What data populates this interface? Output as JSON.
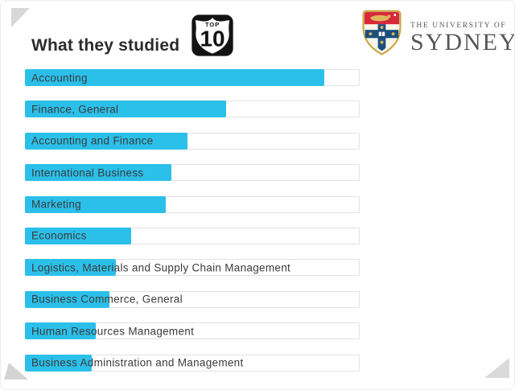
{
  "header": {
    "title": "What they studied",
    "badge": {
      "top_label": "TOP",
      "number": "10"
    },
    "logo": {
      "line1": "THE UNIVERSITY OF",
      "line2": "SYDNEY"
    }
  },
  "colors": {
    "bar_fill": "#2bc0ea",
    "bar_track_border": "#e2e2e2",
    "title_text": "#2b2b2b",
    "bar_label_text": "#3b3b3b",
    "logo_text": "#56565a",
    "crest_red": "#d6293a",
    "crest_blue": "#1b4f7e",
    "crest_gold": "#c9a543",
    "corner_triangle": "#d8d8d8"
  },
  "chart": {
    "bars": [
      {
        "label": "Accounting",
        "value_pct": 89.4
      },
      {
        "label": "Finance, General",
        "value_pct": 60.1
      },
      {
        "label": "Accounting and Finance",
        "value_pct": 48.6
      },
      {
        "label": "International Business",
        "value_pct": 43.8
      },
      {
        "label": "Marketing",
        "value_pct": 42.1
      },
      {
        "label": "Economics",
        "value_pct": 31.7
      },
      {
        "label": "Logistics, Materials and Supply Chain Management",
        "value_pct": 27.2
      },
      {
        "label": "Business Commerce, General",
        "value_pct": 25.2
      },
      {
        "label": "Human Resources Management",
        "value_pct": 21.2
      },
      {
        "label": "Business Administration and Management",
        "value_pct": 20.0
      }
    ]
  },
  "chart_data": {
    "type": "bar",
    "orientation": "horizontal",
    "title": "What they studied",
    "badge": "TOP 10",
    "categories": [
      "Accounting",
      "Finance, General",
      "Accounting and Finance",
      "International Business",
      "Marketing",
      "Economics",
      "Logistics, Materials and Supply Chain Management",
      "Business Commerce, General",
      "Human Resources Management",
      "Business Administration and Management"
    ],
    "values": [
      89.4,
      60.1,
      48.6,
      43.8,
      42.1,
      31.7,
      27.2,
      25.2,
      21.2,
      20.0
    ],
    "values_unit": "relative bar length, % of track width (no numeric axis shown in image)",
    "xlabel": "",
    "ylabel": "",
    "legend": false,
    "grid": false,
    "bar_color": "#2bc0ea"
  }
}
